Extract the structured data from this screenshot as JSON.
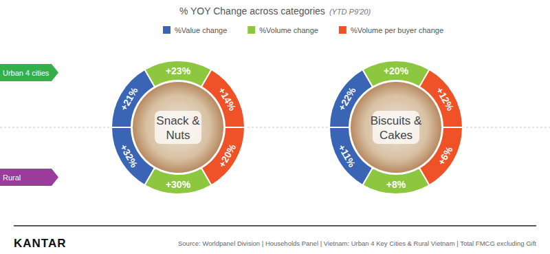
{
  "chart_data": {
    "type": "donut",
    "title": "% YOY Change across categories",
    "subtitle": "(YTD P9'20)",
    "categories": [
      "Snack & Nuts",
      "Biscuits & Cakes"
    ],
    "rows": [
      "Urban 4 cities",
      "Rural"
    ],
    "data_labels": true,
    "series": [
      {
        "name": "%Value change",
        "color": "#3a64b4",
        "values": [
          [
            21,
            32
          ],
          [
            22,
            11
          ]
        ],
        "value_labels": [
          [
            "+21%",
            "+32%"
          ],
          [
            "+22%",
            "+11%"
          ]
        ]
      },
      {
        "name": "%Volume change",
        "color": "#8dc63f",
        "values": [
          [
            23,
            30
          ],
          [
            20,
            8
          ]
        ],
        "value_labels": [
          [
            "+23%",
            "+30%"
          ],
          [
            "+20%",
            "+8%"
          ]
        ]
      },
      {
        "name": "%Volume per buyer change",
        "color": "#ef5227",
        "values": [
          [
            14,
            20
          ],
          [
            12,
            6
          ]
        ],
        "value_labels": [
          [
            "+14%",
            "+20%"
          ],
          [
            "+12%",
            "+6%"
          ]
        ]
      }
    ]
  },
  "footer": {
    "brand": "KANTAR",
    "source": "Source: Worldpanel Division | Households Panel | Vietnam: Urban 4 Key Cities & Rural Vietnam | Total FMCG excluding Gift"
  }
}
